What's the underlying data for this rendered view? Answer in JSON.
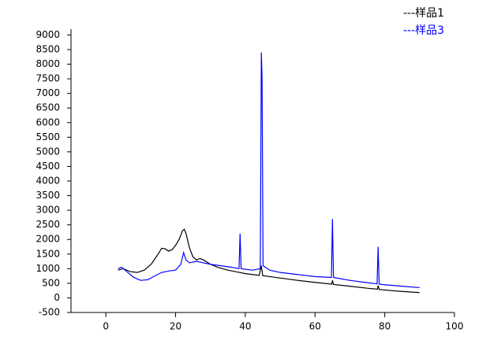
{
  "chart_data": {
    "type": "line",
    "xlim": [
      -10,
      100
    ],
    "xticks": [
      0,
      20,
      40,
      60,
      80,
      100
    ],
    "ylim": [
      -500,
      9200
    ],
    "yticks": [
      -500,
      0,
      500,
      1000,
      1500,
      2000,
      2500,
      3000,
      3500,
      4000,
      4500,
      5000,
      5500,
      6000,
      6500,
      7000,
      7500,
      8000,
      8500,
      9000
    ],
    "grid": false,
    "legend": "top-right",
    "series": [
      {
        "name": "---样品1",
        "color": "#000000",
        "x": [
          3.5,
          5,
          7,
          9,
          11,
          13,
          15,
          16,
          17,
          18,
          19,
          20,
          21,
          22,
          22.5,
          23,
          24,
          25,
          26,
          27,
          28,
          30,
          32,
          35,
          38,
          40,
          44,
          44.6,
          45,
          50,
          55,
          60,
          64.8,
          65,
          65.3,
          70,
          75,
          77.9,
          78.1,
          78.4,
          80,
          85,
          90
        ],
        "values": [
          950,
          1000,
          900,
          870,
          950,
          1150,
          1500,
          1700,
          1680,
          1600,
          1650,
          1800,
          2000,
          2300,
          2350,
          2200,
          1700,
          1400,
          1300,
          1350,
          1300,
          1150,
          1050,
          950,
          880,
          830,
          770,
          1100,
          760,
          680,
          600,
          530,
          470,
          600,
          460,
          400,
          330,
          300,
          420,
          290,
          270,
          220,
          180
        ]
      },
      {
        "name": "---样品3",
        "color": "#0000ff",
        "x": [
          3.5,
          4.5,
          6,
          8,
          10,
          12,
          14,
          16,
          18,
          20,
          21.5,
          22.3,
          23,
          24,
          26,
          28,
          30,
          33,
          36,
          38.2,
          38.5,
          38.8,
          42,
          44.3,
          44.6,
          44.8,
          45.1,
          47,
          50,
          55,
          60,
          64.7,
          65,
          65.3,
          70,
          75,
          77.8,
          78.1,
          78.4,
          80,
          85,
          90
        ],
        "values": [
          1000,
          1050,
          900,
          700,
          600,
          620,
          750,
          870,
          920,
          950,
          1150,
          1550,
          1300,
          1200,
          1250,
          1200,
          1150,
          1100,
          1050,
          1000,
          2200,
          1000,
          950,
          1000,
          8400,
          7600,
          1100,
          950,
          870,
          800,
          730,
          700,
          2700,
          700,
          600,
          520,
          480,
          1750,
          470,
          450,
          400,
          350
        ]
      }
    ]
  }
}
